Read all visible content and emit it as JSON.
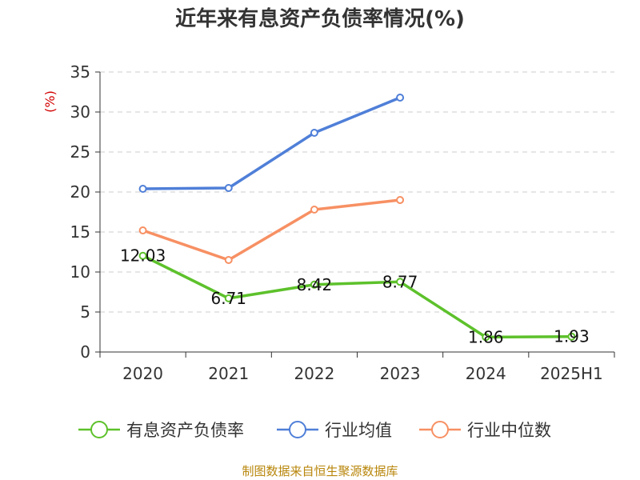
{
  "chart_data": {
    "type": "line",
    "title": "近年来有息资产负债率情况(%)",
    "ylabel": "(%)",
    "xlabel": "",
    "categories": [
      "2020",
      "2021",
      "2022",
      "2023",
      "2024",
      "2025H1"
    ],
    "ylim": [
      0,
      35
    ],
    "yticks": [
      0,
      5,
      10,
      15,
      20,
      25,
      30,
      35
    ],
    "grid": true,
    "legend_position": "bottom",
    "series": [
      {
        "name": "有息资产负债率",
        "color": "#5dc12b",
        "values": [
          12.03,
          6.71,
          8.42,
          8.77,
          1.86,
          1.93
        ],
        "labels": [
          "12.03",
          "6.71",
          "8.42",
          "8.77",
          "1.86",
          "1.93"
        ]
      },
      {
        "name": "行业均值",
        "color": "#4f7fd8",
        "values": [
          20.4,
          20.5,
          27.4,
          31.8,
          null,
          null
        ]
      },
      {
        "name": "行业中位数",
        "color": "#f79063",
        "values": [
          15.2,
          11.5,
          17.8,
          19.0,
          null,
          null
        ]
      }
    ],
    "source": "制图数据来自恒生聚源数据库"
  }
}
